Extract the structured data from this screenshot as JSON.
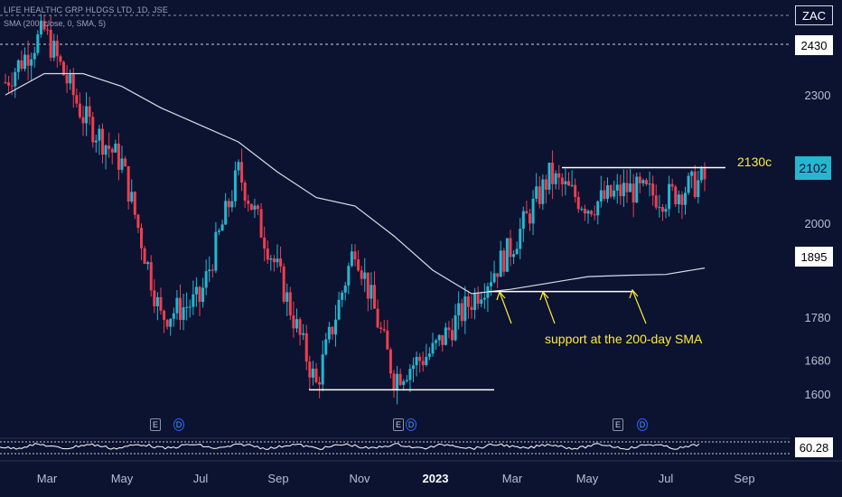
{
  "header": {
    "title": "LIFE HEALTHC GRP HLDGS LTD, 1D, JSE",
    "indicator": "SMA (200, close, 0, SMA, 5)"
  },
  "colors": {
    "background": "#0b1331",
    "up": "#26b6d0",
    "down": "#ef3e4f",
    "sma": "#d9dde6",
    "annotation": "#ffeb3b"
  },
  "price_axis": {
    "ticks": [
      "2300",
      "2000",
      "1780",
      "1680",
      "1600"
    ],
    "labels": {
      "ticker": "ZAC",
      "high_line": "2430",
      "last_price": "2102",
      "sma_value": "1895",
      "osc_value": "60.28"
    }
  },
  "time_axis": {
    "ticks": [
      "Mar",
      "May",
      "Jul",
      "Sep",
      "Nov",
      "2023",
      "Mar",
      "May",
      "Jul",
      "Sep"
    ]
  },
  "annotations": {
    "resistance": "2130c",
    "support": "support at the 200-day SMA"
  },
  "events": [
    {
      "type": "E",
      "icon": "earnings-icon"
    },
    {
      "type": "D",
      "icon": "dividend-icon"
    },
    {
      "type": "E",
      "icon": "earnings-icon"
    },
    {
      "type": "D",
      "icon": "dividend-icon"
    },
    {
      "type": "E",
      "icon": "earnings-icon"
    },
    {
      "type": "D",
      "icon": "dividend-icon"
    }
  ],
  "chart_data": {
    "type": "line",
    "title": "",
    "xlabel": "",
    "ylabel": "",
    "ylim": [
      1560,
      2480
    ],
    "x": [
      "2022-02-01",
      "2022-03-01",
      "2022-04-01",
      "2022-05-01",
      "2022-06-01",
      "2022-07-01",
      "2022-08-01",
      "2022-09-01",
      "2022-10-01",
      "2022-11-01",
      "2022-12-01",
      "2023-01-01",
      "2023-02-01",
      "2023-03-01",
      "2023-04-01",
      "2023-05-01",
      "2023-06-01",
      "2023-07-01",
      "2023-08-01"
    ],
    "series": [
      {
        "values": [
          2330,
          2450,
          2250,
          2140,
          1780,
          1820,
          2120,
          1890,
          1620,
          1950,
          1640,
          1700,
          1820,
          1940,
          2110,
          2040,
          2080,
          2060,
          2102
        ]
      },
      {
        "values": [
          2300,
          2350,
          2350,
          2320,
          2270,
          2230,
          2190,
          2120,
          2060,
          2040,
          1970,
          1890,
          1835,
          1845,
          1860,
          1875,
          1878,
          1880,
          1895
        ]
      }
    ],
    "levels": {
      "resistance": 2130,
      "support_low": 1610
    }
  }
}
